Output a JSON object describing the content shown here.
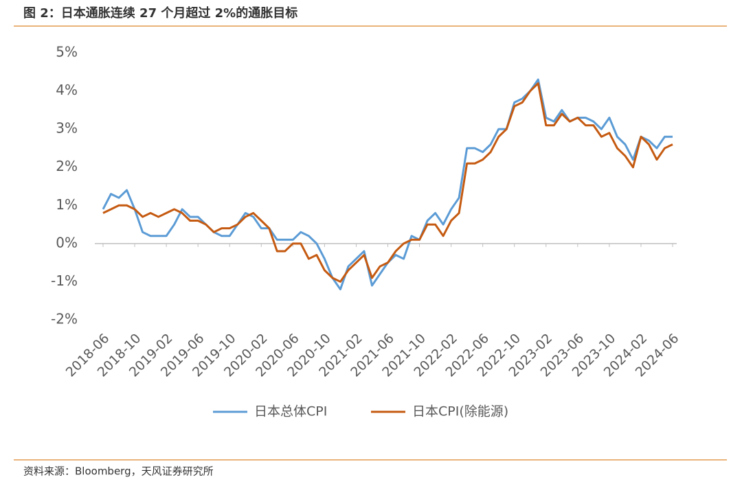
{
  "header": {
    "title": "图 2：日本通胀连续 27 个月超过 2%的通胀目标"
  },
  "chart_data": {
    "type": "line",
    "categories": [
      "2018-06",
      null,
      null,
      null,
      "2018-10",
      null,
      null,
      null,
      "2019-02",
      null,
      null,
      null,
      "2019-06",
      null,
      null,
      null,
      "2019-10",
      null,
      null,
      null,
      "2020-02",
      null,
      null,
      null,
      "2020-06",
      null,
      null,
      null,
      "2020-10",
      null,
      null,
      null,
      "2021-02",
      null,
      null,
      null,
      "2021-06",
      null,
      null,
      null,
      "2021-10",
      null,
      null,
      null,
      "2022-02",
      null,
      null,
      null,
      "2022-06",
      null,
      null,
      null,
      "2022-10",
      null,
      null,
      null,
      "2023-02",
      null,
      null,
      null,
      "2023-06",
      null,
      null,
      null,
      "2023-10",
      null,
      null,
      null,
      "2024-02",
      null,
      null,
      null,
      "2024-06"
    ],
    "series": [
      {
        "name": "日本总体CPI",
        "color": "#5b9bd5",
        "values": [
          0.9,
          1.3,
          1.2,
          1.4,
          0.9,
          0.3,
          0.2,
          0.2,
          0.2,
          0.5,
          0.9,
          0.7,
          0.7,
          0.5,
          0.3,
          0.2,
          0.2,
          0.5,
          0.8,
          0.7,
          0.4,
          0.4,
          0.1,
          0.1,
          0.1,
          0.3,
          0.2,
          0.0,
          -0.4,
          -0.9,
          -1.2,
          -0.6,
          -0.4,
          -0.2,
          -1.1,
          -0.8,
          -0.5,
          -0.3,
          -0.4,
          0.2,
          0.1,
          0.6,
          0.8,
          0.5,
          0.9,
          1.2,
          2.5,
          2.5,
          2.4,
          2.6,
          3.0,
          3.0,
          3.7,
          3.8,
          4.0,
          4.3,
          3.3,
          3.2,
          3.5,
          3.2,
          3.3,
          3.3,
          3.2,
          3.0,
          3.3,
          2.8,
          2.6,
          2.2,
          2.8,
          2.7,
          2.5,
          2.8,
          2.8
        ]
      },
      {
        "name": "日本CPI(除能源)",
        "color": "#c55a11",
        "values": [
          0.8,
          0.9,
          1.0,
          1.0,
          0.9,
          0.7,
          0.8,
          0.7,
          0.8,
          0.9,
          0.8,
          0.6,
          0.6,
          0.5,
          0.3,
          0.4,
          0.4,
          0.5,
          0.7,
          0.8,
          0.6,
          0.4,
          -0.2,
          -0.2,
          0.0,
          0.0,
          -0.4,
          -0.3,
          -0.7,
          -0.9,
          -1.0,
          -0.7,
          -0.5,
          -0.3,
          -0.9,
          -0.6,
          -0.5,
          -0.2,
          0.0,
          0.1,
          0.1,
          0.5,
          0.5,
          0.2,
          0.6,
          0.8,
          2.1,
          2.1,
          2.2,
          2.4,
          2.8,
          3.0,
          3.6,
          3.7,
          4.0,
          4.2,
          3.1,
          3.1,
          3.4,
          3.2,
          3.3,
          3.1,
          3.1,
          2.8,
          2.9,
          2.5,
          2.3,
          2.0,
          2.8,
          2.6,
          2.2,
          2.5,
          2.6
        ]
      }
    ],
    "ylim": [
      -2,
      5
    ],
    "yticks": [
      {
        "value": -2,
        "label": "-2%"
      },
      {
        "value": -1,
        "label": "-1%"
      },
      {
        "value": 0,
        "label": "0%"
      },
      {
        "value": 1,
        "label": "1%"
      },
      {
        "value": 2,
        "label": "2%"
      },
      {
        "value": 3,
        "label": "3%"
      },
      {
        "value": 4,
        "label": "4%"
      },
      {
        "value": 5,
        "label": "5%"
      }
    ],
    "grid": false,
    "legend": "bottom"
  },
  "footer": {
    "source": "资料来源：Bloomberg，天风证券研究所"
  }
}
